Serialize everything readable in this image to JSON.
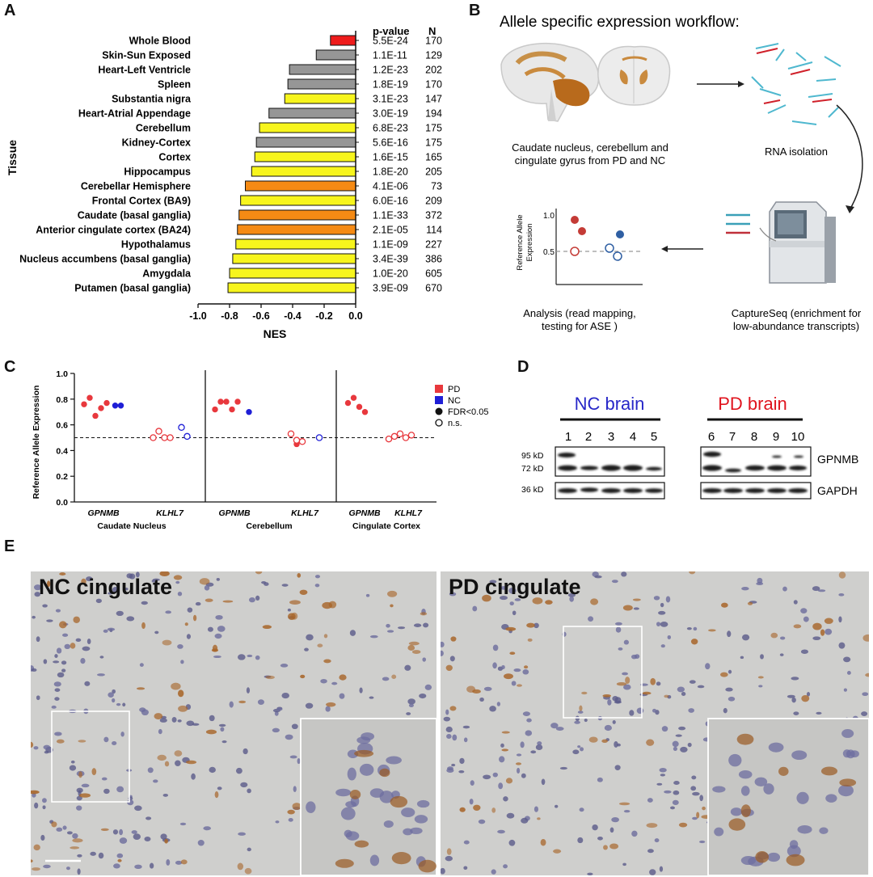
{
  "panels": {
    "a": "A",
    "b": "B",
    "c": "C",
    "d": "D",
    "e": "E"
  },
  "chart_data": [
    {
      "type": "bar",
      "orientation": "horizontal",
      "ylabel": "Tissue",
      "xlabel": "NES",
      "xlim": [
        -1.0,
        0.0
      ],
      "xticks": [
        "-1.0",
        "-0.8",
        "-0.6",
        "-0.4",
        "-0.2",
        "0.0"
      ],
      "pvalue_header": "p-value",
      "n_header": "N",
      "categories": [
        "Whole Blood",
        "Skin-Sun Exposed",
        "Heart-Left Ventricle",
        "Spleen",
        "Substantia nigra",
        "Heart-Atrial Appendage",
        "Cerebellum",
        "Kidney-Cortex",
        "Cortex",
        "Hippocampus",
        "Cerebellar Hemisphere",
        "Frontal Cortex (BA9)",
        "Caudate (basal ganglia)",
        "Anterior cingulate cortex (BA24)",
        "Hypothalamus",
        "Nucleus accumbens (basal ganglia)",
        "Amygdala",
        "Putamen (basal ganglia)"
      ],
      "values": [
        -0.16,
        -0.25,
        -0.42,
        -0.43,
        -0.45,
        -0.55,
        -0.61,
        -0.63,
        -0.64,
        -0.66,
        -0.7,
        -0.73,
        -0.74,
        -0.75,
        -0.76,
        -0.78,
        -0.8,
        -0.81
      ],
      "colors": [
        "#ee1c1c",
        "#969696",
        "#969696",
        "#969696",
        "#f7f51d",
        "#969696",
        "#f7f51d",
        "#969696",
        "#f7f51d",
        "#f7f51d",
        "#f58a14",
        "#f7f51d",
        "#f58a14",
        "#f58a14",
        "#f7f51d",
        "#f7f51d",
        "#f7f51d",
        "#f7f51d"
      ],
      "pvalues": [
        "5.5E-24",
        "1.1E-11",
        "1.2E-23",
        "1.8E-19",
        "3.1E-23",
        "3.0E-19",
        "6.8E-23",
        "5.6E-16",
        "1.6E-15",
        "1.8E-20",
        "4.1E-06",
        "6.0E-16",
        "1.1E-33",
        "2.1E-05",
        "1.1E-09",
        "3.4E-39",
        "1.0E-20",
        "3.9E-09"
      ],
      "n": [
        "170",
        "129",
        "202",
        "170",
        "147",
        "194",
        "175",
        "175",
        "165",
        "205",
        "73",
        "209",
        "372",
        "114",
        "227",
        "386",
        "605",
        "670"
      ]
    },
    {
      "type": "scatter",
      "ylabel": "Reference Allele Expression",
      "ylim": [
        0.0,
        1.0
      ],
      "yticks": [
        "0.0",
        "0.2",
        "0.4",
        "0.6",
        "0.8",
        "1.0"
      ],
      "reference_line": 0.5,
      "legend": [
        {
          "label": "PD",
          "color": "#e8383d"
        },
        {
          "label": "NC",
          "color": "#1f1fd6"
        },
        {
          "label": "FDR<0.05",
          "marker": "filled"
        },
        {
          "label": "n.s.",
          "marker": "open"
        }
      ],
      "regions": [
        "Caudate Nucleus",
        "Cerebellum",
        "Cingulate Cortex"
      ],
      "genes": [
        "GPNMB",
        "KLHL7"
      ],
      "groups": [
        {
          "region": "Caudate Nucleus",
          "gene": "GPNMB",
          "status": "PD",
          "sig": true,
          "values": [
            0.76,
            0.81,
            0.67,
            0.73,
            0.77
          ]
        },
        {
          "region": "Caudate Nucleus",
          "gene": "GPNMB",
          "status": "NC",
          "sig": true,
          "values": [
            0.75,
            0.75
          ]
        },
        {
          "region": "Caudate Nucleus",
          "gene": "KLHL7",
          "status": "PD",
          "sig": false,
          "values": [
            0.5,
            0.55,
            0.5,
            0.5
          ]
        },
        {
          "region": "Caudate Nucleus",
          "gene": "KLHL7",
          "status": "NC",
          "sig": false,
          "values": [
            0.58,
            0.51
          ]
        },
        {
          "region": "Cerebellum",
          "gene": "GPNMB",
          "status": "PD",
          "sig": true,
          "values": [
            0.72,
            0.78,
            0.78,
            0.72,
            0.78
          ]
        },
        {
          "region": "Cerebellum",
          "gene": "GPNMB",
          "status": "NC",
          "sig": true,
          "values": [
            0.7
          ]
        },
        {
          "region": "Cerebellum",
          "gene": "KLHL7",
          "status": "PD",
          "sig": true,
          "values": [
            0.45
          ]
        },
        {
          "region": "Cerebellum",
          "gene": "KLHL7",
          "status": "PD",
          "sig": false,
          "values": [
            0.53,
            0.48,
            0.47
          ]
        },
        {
          "region": "Cerebellum",
          "gene": "KLHL7",
          "status": "NC",
          "sig": false,
          "values": [
            0.5
          ]
        },
        {
          "region": "Cingulate Cortex",
          "gene": "GPNMB",
          "status": "PD",
          "sig": true,
          "values": [
            0.77,
            0.81,
            0.74,
            0.7
          ]
        },
        {
          "region": "Cingulate Cortex",
          "gene": "KLHL7",
          "status": "PD",
          "sig": false,
          "values": [
            0.49,
            0.51,
            0.53,
            0.5,
            0.52
          ]
        }
      ]
    }
  ],
  "workflow": {
    "title": "Allele specific expression workflow:",
    "step1": [
      "Caudate nucleus, cerebellum and",
      "cingulate gyrus from PD and NC"
    ],
    "step2": "RNA isolation",
    "step3": [
      "CaptureSeq (enrichment for",
      "low-abundance transcripts)"
    ],
    "step4": [
      "Analysis (read mapping,",
      "testing for ASE )"
    ],
    "mini_ylabel": [
      "Reference Allele",
      "Expression"
    ],
    "mini_ticks": [
      "1.0",
      "0.5"
    ]
  },
  "blot": {
    "nc_label": "NC brain",
    "pd_label": "PD brain",
    "lanes": [
      "1",
      "2",
      "3",
      "4",
      "5",
      "6",
      "7",
      "8",
      "9",
      "10"
    ],
    "markers": [
      "95 kD",
      "72 kD",
      "36 kD"
    ],
    "targets": [
      "GPNMB",
      "GAPDH"
    ]
  },
  "micrographs": {
    "left_title": "NC cingulate",
    "right_title": "PD cingulate"
  }
}
